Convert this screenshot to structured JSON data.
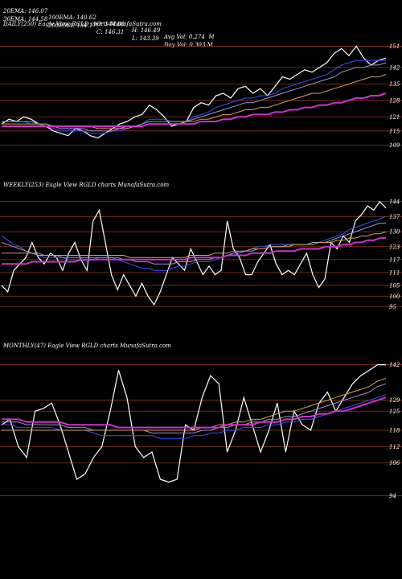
{
  "header": {
    "row1": [
      "20EMA: 146.07",
      "100EMA: 140.62",
      "O: 144.88",
      "H: 146.49",
      "Avg Vol: 0.274  M"
    ],
    "row2": [
      "30EMA: 144.58",
      "200EMA: 134.17",
      "C: 146.31",
      "L: 143.39",
      "Day Vol: 0.303 M"
    ]
  },
  "chart_data": [
    {
      "type": "line",
      "label": "DAILY(250) Eagle   View  RGLD charts MunafaSutra.com",
      "ylim": [
        104,
        157
      ],
      "yticks": [
        151,
        142,
        135,
        128,
        121,
        115,
        109
      ],
      "series": [
        {
          "color": "#ffffff",
          "values": [
            118,
            120,
            119,
            121,
            120,
            118,
            117,
            115,
            114,
            113,
            116,
            115,
            113,
            112,
            114,
            116,
            118,
            119,
            121,
            122,
            126,
            124,
            121,
            117,
            118,
            119,
            125,
            127,
            126,
            130,
            131,
            129,
            133,
            134,
            131,
            133,
            130,
            134,
            138,
            137,
            139,
            141,
            140,
            142,
            144,
            148,
            150,
            147,
            151,
            146,
            143,
            145,
            146
          ]
        },
        {
          "color": "#3355ff",
          "values": [
            119,
            119,
            119,
            119,
            118,
            118,
            117,
            116,
            115,
            115,
            115,
            115,
            114,
            114,
            114,
            115,
            115,
            116,
            117,
            118,
            120,
            120,
            120,
            119,
            119,
            119,
            121,
            122,
            123,
            125,
            126,
            127,
            128,
            129,
            129,
            130,
            130,
            131,
            133,
            134,
            135,
            136,
            137,
            138,
            139,
            141,
            143,
            144,
            145,
            145,
            145,
            145,
            145
          ]
        },
        {
          "color": "#9999cc",
          "values": [
            119,
            119,
            119,
            119,
            119,
            118,
            118,
            117,
            116,
            116,
            116,
            116,
            115,
            115,
            115,
            115,
            116,
            116,
            117,
            118,
            119,
            119,
            119,
            119,
            119,
            119,
            120,
            121,
            122,
            123,
            124,
            125,
            126,
            127,
            127,
            128,
            129,
            130,
            131,
            132,
            133,
            134,
            135,
            136,
            137,
            138,
            140,
            141,
            142,
            142,
            143,
            143,
            144
          ]
        },
        {
          "color": "#d9a05b",
          "values": [
            118,
            118,
            118,
            118,
            118,
            118,
            118,
            117,
            117,
            117,
            117,
            117,
            117,
            116,
            116,
            116,
            116,
            117,
            117,
            117,
            118,
            118,
            118,
            118,
            118,
            119,
            119,
            120,
            120,
            121,
            122,
            122,
            123,
            124,
            124,
            125,
            125,
            126,
            127,
            128,
            129,
            130,
            131,
            131,
            132,
            133,
            134,
            135,
            136,
            137,
            138,
            138,
            139
          ]
        },
        {
          "color": "#cc33cc",
          "values": [
            117,
            117,
            117,
            117,
            117,
            117,
            117,
            117,
            117,
            117,
            117,
            117,
            117,
            117,
            117,
            117,
            117,
            117,
            117,
            117,
            118,
            118,
            118,
            118,
            118,
            118,
            118,
            119,
            119,
            119,
            120,
            120,
            121,
            121,
            122,
            122,
            122,
            123,
            123,
            124,
            124,
            125,
            125,
            126,
            126,
            127,
            127,
            128,
            129,
            129,
            130,
            130,
            131
          ]
        }
      ]
    },
    {
      "type": "line",
      "label": "WEEKLY(253) Eagle   View  RGLD charts MunafaSutra.com",
      "ylim": [
        90,
        148
      ],
      "yticks": [
        144,
        137,
        130,
        123,
        117,
        111,
        105,
        100,
        95
      ],
      "series": [
        {
          "color": "#ffffff",
          "values": [
            105,
            102,
            112,
            115,
            118,
            125,
            118,
            115,
            120,
            118,
            112,
            120,
            125,
            117,
            112,
            135,
            140,
            125,
            110,
            103,
            110,
            105,
            100,
            106,
            100,
            96,
            102,
            110,
            118,
            115,
            112,
            122,
            116,
            110,
            114,
            110,
            112,
            135,
            122,
            118,
            110,
            110,
            116,
            120,
            124,
            115,
            110,
            112,
            110,
            115,
            120,
            110,
            104,
            108,
            125,
            122,
            128,
            125,
            135,
            138,
            142,
            140,
            144,
            141
          ]
        },
        {
          "color": "#3355ff",
          "values": [
            128,
            126,
            124,
            123,
            121,
            120,
            119,
            118,
            118,
            118,
            118,
            117,
            117,
            117,
            116,
            117,
            118,
            118,
            118,
            117,
            116,
            115,
            114,
            113,
            113,
            112,
            112,
            112,
            113,
            114,
            114,
            115,
            116,
            116,
            116,
            117,
            118,
            119,
            120,
            121,
            121,
            122,
            123,
            123,
            124,
            124,
            124,
            124,
            124,
            124,
            124,
            125,
            125,
            126,
            127,
            128,
            129,
            131,
            132,
            133,
            134,
            135,
            136,
            137
          ]
        },
        {
          "color": "#9999cc",
          "values": [
            125,
            124,
            123,
            122,
            121,
            120,
            120,
            119,
            119,
            119,
            118,
            118,
            118,
            118,
            118,
            118,
            118,
            118,
            118,
            118,
            117,
            117,
            116,
            116,
            116,
            115,
            115,
            115,
            115,
            116,
            116,
            116,
            117,
            117,
            117,
            118,
            118,
            119,
            120,
            120,
            121,
            121,
            122,
            122,
            123,
            123,
            123,
            124,
            124,
            124,
            124,
            125,
            125,
            125,
            126,
            127,
            128,
            129,
            130,
            131,
            132,
            133,
            134,
            134
          ]
        },
        {
          "color": "#d9a05b",
          "values": [
            120,
            120,
            120,
            120,
            120,
            120,
            119,
            119,
            119,
            119,
            119,
            119,
            119,
            119,
            119,
            119,
            119,
            119,
            119,
            119,
            119,
            118,
            118,
            118,
            118,
            118,
            118,
            118,
            118,
            118,
            118,
            119,
            119,
            119,
            119,
            120,
            120,
            120,
            121,
            121,
            121,
            122,
            122,
            122,
            123,
            123,
            123,
            123,
            124,
            124,
            124,
            124,
            125,
            125,
            125,
            126,
            126,
            127,
            127,
            128,
            128,
            129,
            129,
            130
          ]
        },
        {
          "color": "#cc33cc",
          "values": [
            115,
            115,
            115,
            115,
            115,
            116,
            116,
            116,
            116,
            116,
            116,
            116,
            116,
            117,
            117,
            117,
            117,
            117,
            117,
            117,
            117,
            117,
            117,
            117,
            117,
            117,
            117,
            117,
            117,
            117,
            117,
            118,
            118,
            118,
            118,
            118,
            118,
            119,
            119,
            119,
            119,
            120,
            120,
            120,
            120,
            121,
            121,
            121,
            121,
            122,
            122,
            122,
            122,
            123,
            123,
            123,
            124,
            124,
            125,
            125,
            126,
            126,
            127,
            127
          ]
        }
      ]
    },
    {
      "type": "line",
      "label": "MONTHLY(47) Eagle   View  RGLD charts MunafaSutra.com",
      "ylim": [
        90,
        146
      ],
      "yticks": [
        142,
        129,
        125,
        118,
        112,
        106,
        94
      ],
      "series": [
        {
          "color": "#ffffff",
          "values": [
            120,
            122,
            112,
            108,
            125,
            126,
            128,
            120,
            110,
            100,
            102,
            108,
            112,
            125,
            140,
            130,
            112,
            108,
            110,
            100,
            99,
            100,
            120,
            118,
            130,
            138,
            135,
            110,
            118,
            130,
            120,
            110,
            118,
            128,
            110,
            125,
            120,
            118,
            128,
            132,
            125,
            130,
            135,
            138,
            140,
            142,
            142
          ]
        },
        {
          "color": "#3355ff",
          "values": [
            120,
            120,
            119,
            119,
            119,
            119,
            119,
            118,
            118,
            118,
            118,
            117,
            116,
            116,
            116,
            116,
            116,
            116,
            116,
            115,
            115,
            115,
            115,
            116,
            116,
            117,
            117,
            118,
            118,
            119,
            119,
            119,
            120,
            120,
            121,
            121,
            122,
            122,
            123,
            124,
            125,
            126,
            127,
            128,
            129,
            130,
            131
          ]
        },
        {
          "color": "#9999cc",
          "values": [
            121,
            121,
            121,
            120,
            120,
            120,
            120,
            120,
            119,
            119,
            119,
            118,
            118,
            118,
            118,
            118,
            118,
            118,
            117,
            117,
            117,
            117,
            117,
            117,
            118,
            118,
            119,
            119,
            120,
            120,
            121,
            121,
            122,
            122,
            123,
            123,
            124,
            125,
            126,
            127,
            128,
            129,
            130,
            131,
            132,
            134,
            135
          ]
        },
        {
          "color": "#d9a05b",
          "values": [
            118,
            118,
            118,
            118,
            118,
            118,
            118,
            118,
            118,
            118,
            118,
            118,
            118,
            118,
            118,
            118,
            118,
            118,
            118,
            118,
            118,
            118,
            118,
            118,
            119,
            119,
            120,
            120,
            121,
            121,
            122,
            122,
            123,
            124,
            125,
            125,
            126,
            127,
            128,
            129,
            130,
            131,
            132,
            133,
            134,
            136,
            137
          ]
        },
        {
          "color": "#cc33cc",
          "values": [
            122,
            122,
            122,
            121,
            121,
            121,
            121,
            121,
            120,
            120,
            120,
            120,
            120,
            120,
            119,
            119,
            119,
            119,
            119,
            119,
            119,
            119,
            119,
            119,
            119,
            119,
            119,
            120,
            120,
            120,
            120,
            121,
            121,
            121,
            122,
            122,
            123,
            123,
            124,
            124,
            125,
            125,
            126,
            127,
            128,
            129,
            130
          ]
        }
      ]
    }
  ]
}
